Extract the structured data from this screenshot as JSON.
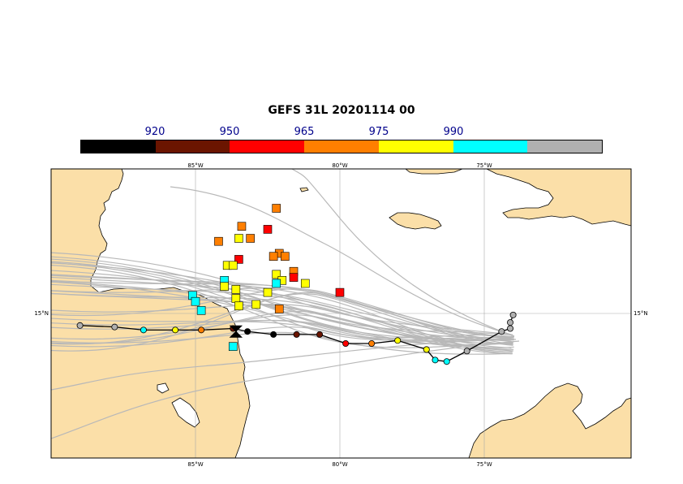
{
  "title": "GEFS 31L 20201114 00",
  "colorbar": {
    "labels": [
      "920",
      "950",
      "965",
      "975",
      "990"
    ],
    "colors": [
      "#000000",
      "#6b1500",
      "#ff0000",
      "#ff7f00",
      "#ffff00",
      "#00ffff",
      "#b0b0b0"
    ]
  },
  "map": {
    "lon_labels": [
      "85°W",
      "80°W",
      "75°W"
    ],
    "lat_labels": [
      "15°N"
    ],
    "land_color": "#fbdfa8",
    "track_color": "#b8b8b8",
    "outline": "#000000"
  },
  "analysis_track": [
    {
      "lon": -89.0,
      "lat": 14.6,
      "cat": "gray"
    },
    {
      "lon": -87.8,
      "lat": 14.55,
      "cat": "gray"
    },
    {
      "lon": -86.8,
      "lat": 14.45,
      "cat": "cyan"
    },
    {
      "lon": -85.7,
      "lat": 14.45,
      "cat": "yellow"
    },
    {
      "lon": -84.8,
      "lat": 14.45,
      "cat": "orange"
    },
    {
      "lon": -83.7,
      "lat": 14.5,
      "cat": "darkred"
    },
    {
      "lon": -83.2,
      "lat": 14.4,
      "cat": "black"
    },
    {
      "lon": -82.3,
      "lat": 14.3,
      "cat": "black"
    },
    {
      "lon": -81.5,
      "lat": 14.3,
      "cat": "darkred"
    },
    {
      "lon": -80.7,
      "lat": 14.3,
      "cat": "darkred"
    },
    {
      "lon": -79.8,
      "lat": 14.0,
      "cat": "red"
    },
    {
      "lon": -78.9,
      "lat": 14.0,
      "cat": "orange"
    },
    {
      "lon": -78.0,
      "lat": 14.1,
      "cat": "yellow"
    },
    {
      "lon": -77.0,
      "lat": 13.8,
      "cat": "yellow"
    },
    {
      "lon": -76.7,
      "lat": 13.45,
      "cat": "cyan"
    },
    {
      "lon": -76.3,
      "lat": 13.4,
      "cat": "cyan"
    },
    {
      "lon": -75.6,
      "lat": 13.75,
      "cat": "gray"
    },
    {
      "lon": -74.4,
      "lat": 14.4,
      "cat": "gray"
    },
    {
      "lon": -74.1,
      "lat": 14.5,
      "cat": "gray"
    },
    {
      "lon": -74.1,
      "lat": 14.7,
      "cat": "gray"
    },
    {
      "lon": -74.0,
      "lat": 14.95,
      "cat": "gray"
    }
  ],
  "current_position": {
    "lon": -83.6,
    "lat": 14.4
  },
  "ensemble_positions": [
    {
      "lon": -82.2,
      "lat": 18.5,
      "cat": "orange"
    },
    {
      "lon": -83.4,
      "lat": 17.9,
      "cat": "orange"
    },
    {
      "lon": -82.5,
      "lat": 17.8,
      "cat": "red"
    },
    {
      "lon": -83.1,
      "lat": 17.5,
      "cat": "orange"
    },
    {
      "lon": -83.5,
      "lat": 17.5,
      "cat": "yellow"
    },
    {
      "lon": -84.2,
      "lat": 17.4,
      "cat": "orange"
    },
    {
      "lon": -82.1,
      "lat": 17.0,
      "cat": "orange"
    },
    {
      "lon": -82.3,
      "lat": 16.9,
      "cat": "orange"
    },
    {
      "lon": -81.9,
      "lat": 16.9,
      "cat": "orange"
    },
    {
      "lon": -83.5,
      "lat": 16.8,
      "cat": "red"
    },
    {
      "lon": -83.9,
      "lat": 16.6,
      "cat": "yellow"
    },
    {
      "lon": -83.7,
      "lat": 16.6,
      "cat": "yellow"
    },
    {
      "lon": -82.2,
      "lat": 16.3,
      "cat": "yellow"
    },
    {
      "lon": -81.6,
      "lat": 16.4,
      "cat": "orange"
    },
    {
      "lon": -81.6,
      "lat": 16.2,
      "cat": "red"
    },
    {
      "lon": -82.0,
      "lat": 16.1,
      "cat": "yellow"
    },
    {
      "lon": -81.2,
      "lat": 16.0,
      "cat": "yellow"
    },
    {
      "lon": -82.2,
      "lat": 16.0,
      "cat": "cyan"
    },
    {
      "lon": -84.0,
      "lat": 16.1,
      "cat": "cyan"
    },
    {
      "lon": -84.0,
      "lat": 15.9,
      "cat": "yellow"
    },
    {
      "lon": -83.6,
      "lat": 15.8,
      "cat": "yellow"
    },
    {
      "lon": -82.5,
      "lat": 15.7,
      "cat": "yellow"
    },
    {
      "lon": -80.0,
      "lat": 15.7,
      "cat": "red"
    },
    {
      "lon": -85.1,
      "lat": 15.6,
      "cat": "cyan"
    },
    {
      "lon": -85.0,
      "lat": 15.4,
      "cat": "cyan"
    },
    {
      "lon": -83.6,
      "lat": 15.5,
      "cat": "yellow"
    },
    {
      "lon": -83.5,
      "lat": 15.25,
      "cat": "yellow"
    },
    {
      "lon": -82.9,
      "lat": 15.3,
      "cat": "yellow"
    },
    {
      "lon": -82.1,
      "lat": 15.15,
      "cat": "orange"
    },
    {
      "lon": -84.8,
      "lat": 15.1,
      "cat": "cyan"
    },
    {
      "lon": -83.7,
      "lat": 13.9,
      "cat": "cyan"
    }
  ]
}
